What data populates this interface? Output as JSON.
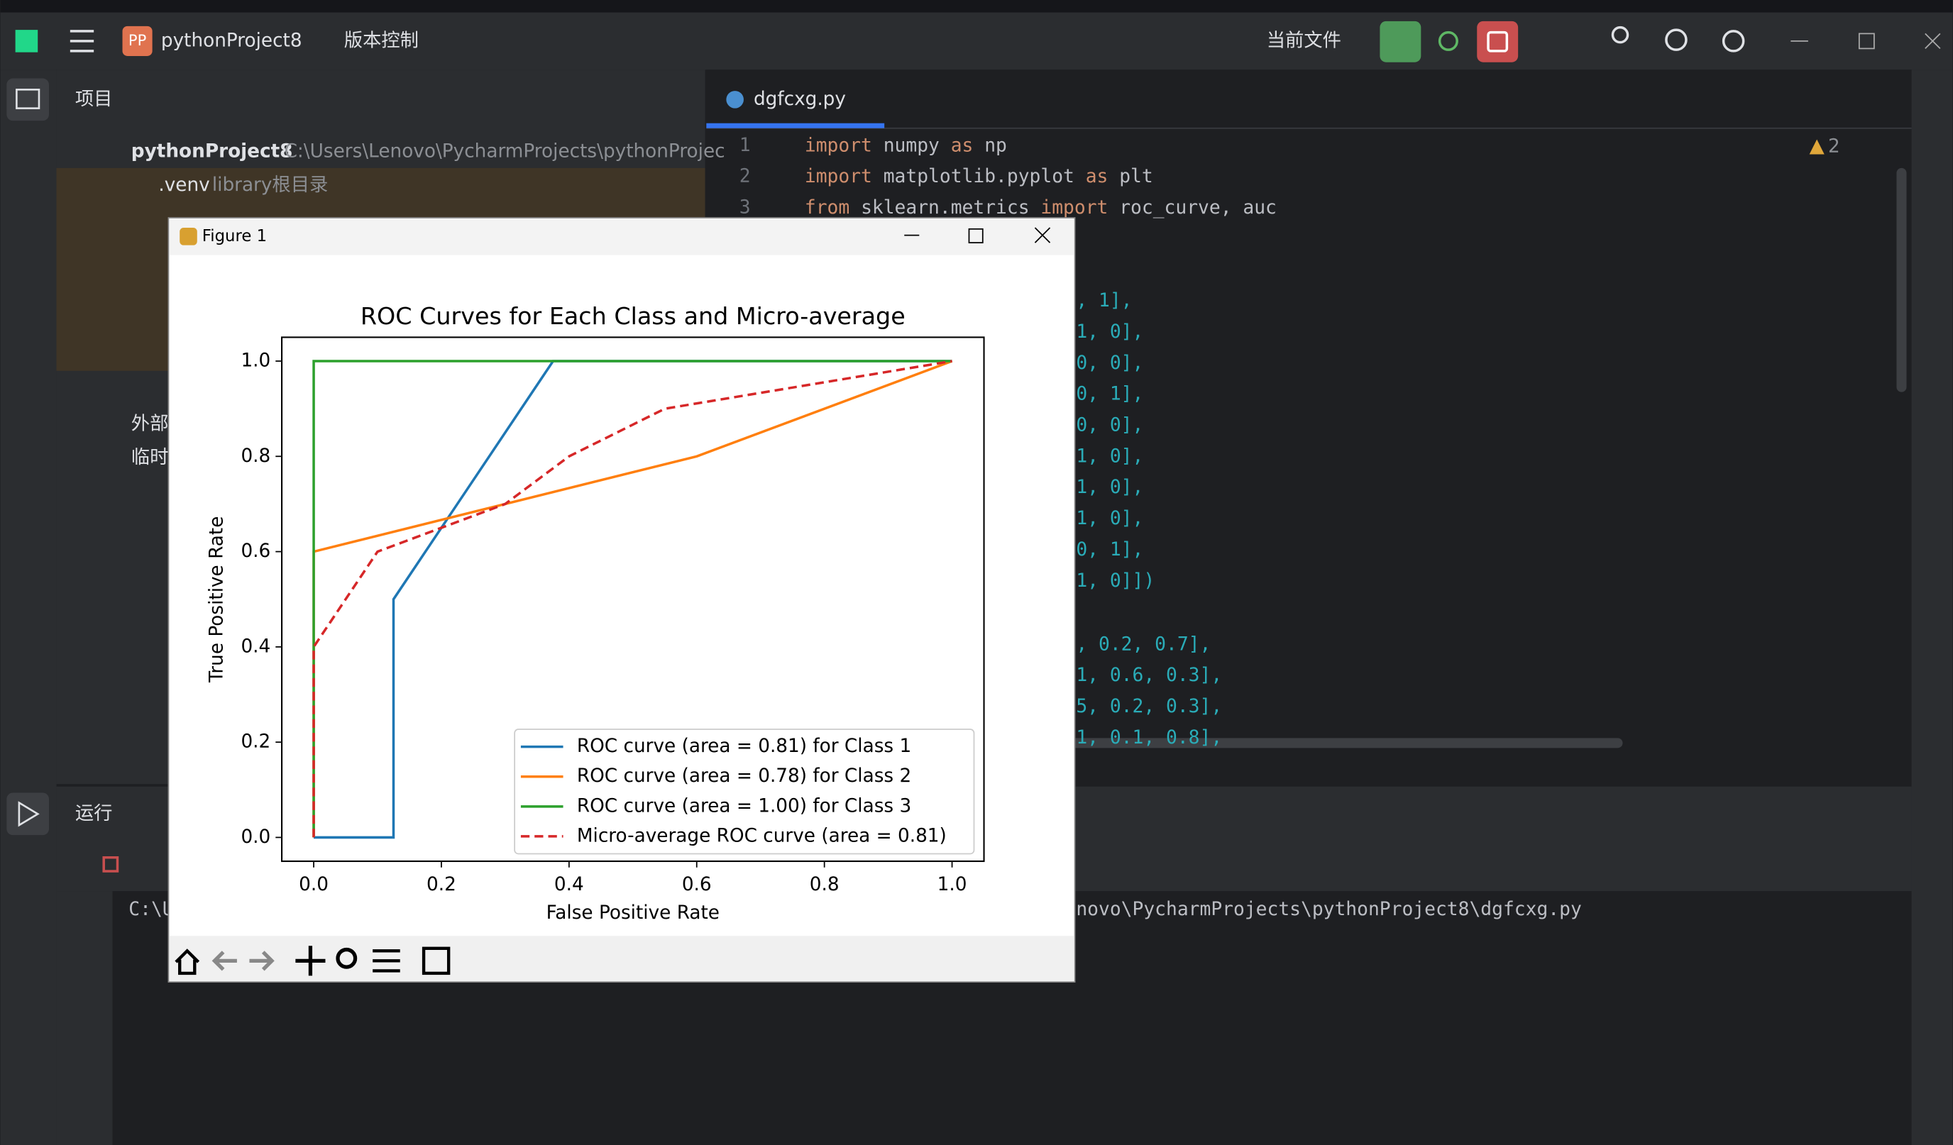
{
  "toolbar": {
    "badge": "PP",
    "project": "pythonProject8",
    "vcs": "版本控制",
    "current_file": "当前文件"
  },
  "project_panel": {
    "title": "项目",
    "root": "pythonProject8",
    "root_path": "C:\\Users\\Lenovo\\PycharmProjects\\pythonProjec",
    "venv": ".venv",
    "venv_note": "library根目录",
    "external": "外部",
    "scratch": "临时"
  },
  "editor": {
    "tab": "dgfcxg.py",
    "warnings": "2",
    "line_numbers": [
      "1",
      "2",
      "3"
    ],
    "lines": [
      [
        {
          "text": "import",
          "color": "#cf8e6d"
        },
        {
          "text": " numpy ",
          "color": "#bcbec4"
        },
        {
          "text": "as",
          "color": "#cf8e6d"
        },
        {
          "text": " np",
          "color": "#bcbec4"
        }
      ],
      [
        {
          "text": "import",
          "color": "#cf8e6d"
        },
        {
          "text": " matplotlib.pyplot ",
          "color": "#bcbec4"
        },
        {
          "text": "as",
          "color": "#cf8e6d"
        },
        {
          "text": " plt",
          "color": "#bcbec4"
        }
      ],
      [
        {
          "text": "from",
          "color": "#cf8e6d"
        },
        {
          "text": " sklearn.metrics ",
          "color": "#bcbec4"
        },
        {
          "text": "import",
          "color": "#cf8e6d"
        },
        {
          "text": " roc_curve, auc",
          "color": "#bcbec4"
        }
      ]
    ],
    "fragments": [
      ", 1],",
      "1, 0],",
      "0, 0],",
      "0, 1],",
      "0, 0],",
      "1, 0],",
      "1, 0],",
      "1, 0],",
      "0, 1],",
      "1, 0]])"
    ],
    "fragments2": [
      ", 0.2, 0.7],",
      "1, 0.6, 0.3],",
      "5, 0.2, 0.3],",
      "1, 0.1, 0.8],"
    ]
  },
  "console": {
    "tab": "运行",
    "line_left": "C:\\U",
    "line_right": "novo\\PycharmProjects\\pythonProject8\\dgfcxg.py"
  },
  "figure": {
    "title": "Figure 1"
  },
  "chart_data": {
    "type": "line",
    "title": "ROC Curves for Each Class and Micro-average",
    "x_label": "False Positive Rate",
    "y_label": "True Positive Rate",
    "xlim": [
      -0.05,
      1.05
    ],
    "ylim": [
      -0.05,
      1.05
    ],
    "xticks": [
      {
        "value": 0,
        "label": "0.0"
      },
      0.2,
      0.4,
      0.6,
      0.8,
      {
        "value": 1,
        "label": "1.0"
      }
    ],
    "yticks": [
      {
        "value": 0,
        "label": "0.0"
      },
      0.2,
      0.4,
      0.6,
      0.8,
      {
        "value": 1,
        "label": "1.0"
      }
    ],
    "grid": false,
    "legend": "lower right",
    "series": [
      {
        "name": "ROC curve (area = 0.81) for Class 1",
        "color": "#1f77b4",
        "dash": false,
        "x": [
          0,
          0,
          0.125,
          0.125,
          0.375,
          1
        ],
        "values": [
          0,
          0,
          0,
          0.5,
          1,
          1
        ]
      },
      {
        "name": "ROC curve (area = 0.78) for Class 2",
        "color": "#ff7f0e",
        "dash": false,
        "x": [
          0,
          0,
          0.6,
          1
        ],
        "values": [
          0,
          0.6,
          0.8,
          1
        ]
      },
      {
        "name": "ROC curve (area = 1.00) for Class 3",
        "color": "#2ca02c",
        "dash": false,
        "x": [
          0,
          0,
          1
        ],
        "values": [
          0,
          1,
          1
        ]
      },
      {
        "name": "Micro-average ROC curve (area = 0.81)",
        "color": "#d62728",
        "dash": true,
        "x": [
          0,
          0,
          0.1,
          0.3,
          0.4,
          0.55,
          1
        ],
        "values": [
          0,
          0.4,
          0.6,
          0.7,
          0.8,
          0.9,
          1
        ]
      }
    ]
  }
}
